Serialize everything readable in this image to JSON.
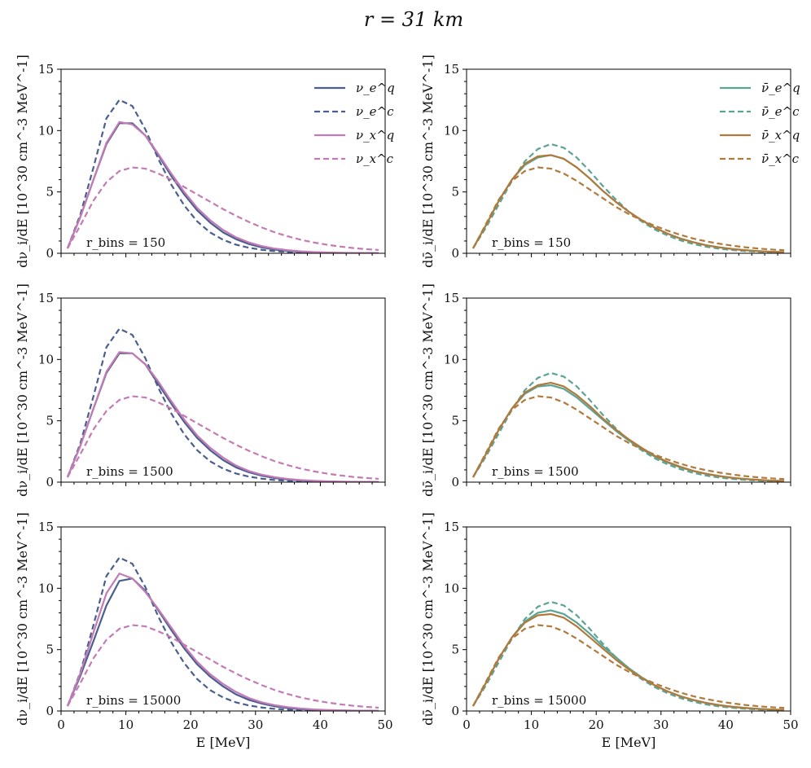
{
  "figure_title": "r = 31 km",
  "chart_data": [
    {
      "type": "line",
      "panel": "left-top",
      "annotation": "r_bins = 150",
      "xlabel": "",
      "ylabel": "dν_i/dE [10^30 cm^-3 MeV^-1]",
      "xlim": [
        0,
        50
      ],
      "ylim": [
        0,
        15
      ],
      "xticks": [
        0,
        10,
        20,
        30,
        40,
        50
      ],
      "xtick_labels_shown": false,
      "yticks": [
        0,
        5,
        10,
        15
      ],
      "grid": false,
      "legend": "top-right",
      "x": [
        1,
        3,
        5,
        7,
        9,
        11,
        13,
        15,
        17,
        19,
        21,
        23,
        25,
        27,
        29,
        31,
        33,
        35,
        37,
        39,
        41,
        43,
        45,
        47,
        49
      ],
      "series": [
        {
          "name": "ν_e^q",
          "color": "#4a5f8f",
          "dash": "solid",
          "values": [
            0.4,
            3.0,
            6.0,
            8.9,
            10.6,
            10.6,
            9.6,
            8.0,
            6.3,
            4.8,
            3.5,
            2.5,
            1.7,
            1.15,
            0.75,
            0.48,
            0.3,
            0.19,
            0.12,
            0.07,
            0.045,
            0.03,
            0.02,
            0.01,
            0.01
          ]
        },
        {
          "name": "ν_e^c",
          "color": "#4a5f8f",
          "dash": "dashed",
          "values": [
            0.4,
            3.2,
            7.0,
            11.0,
            12.5,
            12.0,
            10.1,
            7.7,
            5.6,
            3.9,
            2.6,
            1.7,
            1.1,
            0.7,
            0.45,
            0.28,
            0.17,
            0.1,
            0.06,
            0.04,
            0.02,
            0.01,
            0.01,
            0.0,
            0.0
          ]
        },
        {
          "name": "ν_x^q",
          "color": "#c47bb5",
          "dash": "solid",
          "values": [
            0.4,
            3.0,
            6.0,
            9.0,
            10.7,
            10.5,
            9.6,
            8.1,
            6.5,
            5.0,
            3.7,
            2.7,
            1.9,
            1.3,
            0.88,
            0.58,
            0.38,
            0.25,
            0.16,
            0.1,
            0.065,
            0.04,
            0.025,
            0.015,
            0.01
          ]
        },
        {
          "name": "ν_x^c",
          "color": "#c47bb5",
          "dash": "dashed",
          "values": [
            0.4,
            2.3,
            4.3,
            5.8,
            6.7,
            7.0,
            6.9,
            6.5,
            6.0,
            5.4,
            4.8,
            4.2,
            3.6,
            3.05,
            2.55,
            2.1,
            1.7,
            1.38,
            1.1,
            0.88,
            0.7,
            0.55,
            0.43,
            0.34,
            0.27
          ]
        }
      ]
    },
    {
      "type": "line",
      "panel": "right-top",
      "annotation": "r_bins = 150",
      "xlabel": "",
      "ylabel": "dν̄_i/dE [10^30 cm^-3 MeV^-1]",
      "xlim": [
        0,
        50
      ],
      "ylim": [
        0,
        15
      ],
      "xticks": [
        0,
        10,
        20,
        30,
        40,
        50
      ],
      "xtick_labels_shown": false,
      "yticks": [
        0,
        5,
        10,
        15
      ],
      "grid": false,
      "legend": "top-right",
      "x": [
        1,
        3,
        5,
        7,
        9,
        11,
        13,
        15,
        17,
        19,
        21,
        23,
        25,
        27,
        29,
        31,
        33,
        35,
        37,
        39,
        41,
        43,
        45,
        47,
        49
      ],
      "series": [
        {
          "name": "ν̄_e^q",
          "color": "#5ba393",
          "dash": "solid",
          "values": [
            0.4,
            2.3,
            4.3,
            6.0,
            7.2,
            7.8,
            8.0,
            7.7,
            7.0,
            6.1,
            5.1,
            4.2,
            3.4,
            2.7,
            2.1,
            1.6,
            1.2,
            0.9,
            0.65,
            0.48,
            0.35,
            0.25,
            0.18,
            0.13,
            0.09
          ]
        },
        {
          "name": "ν̄_e^c",
          "color": "#5ba393",
          "dash": "dashed",
          "values": [
            0.4,
            2.1,
            4.0,
            5.9,
            7.5,
            8.5,
            8.9,
            8.6,
            7.8,
            6.7,
            5.5,
            4.4,
            3.4,
            2.6,
            1.95,
            1.45,
            1.05,
            0.75,
            0.53,
            0.37,
            0.26,
            0.18,
            0.12,
            0.08,
            0.05
          ]
        },
        {
          "name": "ν̄_x^q",
          "color": "#b07a3d",
          "dash": "solid",
          "values": [
            0.4,
            2.3,
            4.3,
            6.0,
            7.3,
            7.9,
            8.0,
            7.7,
            7.0,
            6.1,
            5.1,
            4.2,
            3.4,
            2.7,
            2.1,
            1.6,
            1.2,
            0.9,
            0.65,
            0.48,
            0.35,
            0.25,
            0.18,
            0.13,
            0.09
          ]
        },
        {
          "name": "ν̄_x^c",
          "color": "#b07a3d",
          "dash": "dashed",
          "values": [
            0.4,
            2.4,
            4.4,
            5.9,
            6.7,
            7.0,
            6.9,
            6.5,
            5.9,
            5.2,
            4.5,
            3.8,
            3.2,
            2.7,
            2.25,
            1.85,
            1.5,
            1.2,
            0.97,
            0.78,
            0.62,
            0.49,
            0.39,
            0.31,
            0.25
          ]
        }
      ]
    },
    {
      "type": "line",
      "panel": "left-middle",
      "annotation": "r_bins = 1500",
      "xlabel": "",
      "ylabel": "dν_i/dE [10^30 cm^-3 MeV^-1]",
      "xlim": [
        0,
        50
      ],
      "ylim": [
        0,
        15
      ],
      "xticks": [
        0,
        10,
        20,
        30,
        40,
        50
      ],
      "xtick_labels_shown": false,
      "yticks": [
        0,
        5,
        10,
        15
      ],
      "grid": false,
      "legend": "none",
      "x": [
        1,
        3,
        5,
        7,
        9,
        11,
        13,
        15,
        17,
        19,
        21,
        23,
        25,
        27,
        29,
        31,
        33,
        35,
        37,
        39,
        41,
        43,
        45,
        47,
        49
      ],
      "series": [
        {
          "name": "ν_e^q",
          "color": "#4a5f8f",
          "dash": "solid",
          "values": [
            0.4,
            3.0,
            6.0,
            8.9,
            10.5,
            10.5,
            9.6,
            8.0,
            6.4,
            4.9,
            3.6,
            2.6,
            1.8,
            1.2,
            0.8,
            0.52,
            0.33,
            0.21,
            0.13,
            0.08,
            0.05,
            0.03,
            0.02,
            0.01,
            0.01
          ]
        },
        {
          "name": "ν_e^c",
          "color": "#4a5f8f",
          "dash": "dashed",
          "values": [
            0.4,
            3.2,
            7.0,
            11.0,
            12.5,
            12.0,
            10.1,
            7.7,
            5.6,
            3.9,
            2.6,
            1.7,
            1.1,
            0.7,
            0.45,
            0.28,
            0.17,
            0.1,
            0.06,
            0.04,
            0.02,
            0.01,
            0.01,
            0.0,
            0.0
          ]
        },
        {
          "name": "ν_x^q",
          "color": "#c47bb5",
          "dash": "solid",
          "values": [
            0.4,
            3.0,
            6.0,
            9.0,
            10.6,
            10.5,
            9.6,
            8.2,
            6.6,
            5.1,
            3.8,
            2.8,
            2.0,
            1.35,
            0.9,
            0.6,
            0.4,
            0.26,
            0.17,
            0.11,
            0.07,
            0.045,
            0.03,
            0.02,
            0.01
          ]
        },
        {
          "name": "ν_x^c",
          "color": "#c47bb5",
          "dash": "dashed",
          "values": [
            0.4,
            2.3,
            4.3,
            5.8,
            6.7,
            7.0,
            6.9,
            6.5,
            6.0,
            5.4,
            4.8,
            4.2,
            3.6,
            3.05,
            2.55,
            2.1,
            1.7,
            1.38,
            1.1,
            0.88,
            0.7,
            0.55,
            0.43,
            0.34,
            0.27
          ]
        }
      ]
    },
    {
      "type": "line",
      "panel": "right-middle",
      "annotation": "r_bins = 1500",
      "xlabel": "",
      "ylabel": "dν̄_i/dE [10^30 cm^-3 MeV^-1]",
      "xlim": [
        0,
        50
      ],
      "ylim": [
        0,
        15
      ],
      "xticks": [
        0,
        10,
        20,
        30,
        40,
        50
      ],
      "xtick_labels_shown": false,
      "yticks": [
        0,
        5,
        10,
        15
      ],
      "grid": false,
      "legend": "none",
      "x": [
        1,
        3,
        5,
        7,
        9,
        11,
        13,
        15,
        17,
        19,
        21,
        23,
        25,
        27,
        29,
        31,
        33,
        35,
        37,
        39,
        41,
        43,
        45,
        47,
        49
      ],
      "series": [
        {
          "name": "ν̄_e^q",
          "color": "#5ba393",
          "dash": "solid",
          "values": [
            0.4,
            2.3,
            4.3,
            6.0,
            7.2,
            7.8,
            7.9,
            7.6,
            6.9,
            6.0,
            5.1,
            4.2,
            3.4,
            2.7,
            2.1,
            1.6,
            1.2,
            0.9,
            0.66,
            0.48,
            0.35,
            0.25,
            0.18,
            0.13,
            0.09
          ]
        },
        {
          "name": "ν̄_e^c",
          "color": "#5ba393",
          "dash": "dashed",
          "values": [
            0.4,
            2.1,
            4.0,
            5.9,
            7.5,
            8.5,
            8.9,
            8.6,
            7.8,
            6.7,
            5.5,
            4.4,
            3.4,
            2.6,
            1.95,
            1.45,
            1.05,
            0.75,
            0.53,
            0.37,
            0.26,
            0.18,
            0.12,
            0.08,
            0.05
          ]
        },
        {
          "name": "ν̄_x^q",
          "color": "#b07a3d",
          "dash": "solid",
          "values": [
            0.4,
            2.3,
            4.3,
            6.0,
            7.3,
            7.9,
            8.1,
            7.8,
            7.1,
            6.2,
            5.2,
            4.3,
            3.5,
            2.8,
            2.15,
            1.65,
            1.25,
            0.92,
            0.68,
            0.5,
            0.36,
            0.26,
            0.19,
            0.13,
            0.09
          ]
        },
        {
          "name": "ν̄_x^c",
          "color": "#b07a3d",
          "dash": "dashed",
          "values": [
            0.4,
            2.4,
            4.4,
            5.9,
            6.7,
            7.0,
            6.9,
            6.5,
            5.9,
            5.2,
            4.5,
            3.8,
            3.2,
            2.7,
            2.25,
            1.85,
            1.5,
            1.2,
            0.97,
            0.78,
            0.62,
            0.49,
            0.39,
            0.31,
            0.25
          ]
        }
      ]
    },
    {
      "type": "line",
      "panel": "left-bottom",
      "annotation": "r_bins = 15000",
      "xlabel": "E [MeV]",
      "ylabel": "dν_i/dE [10^30 cm^-3 MeV^-1]",
      "xlim": [
        0,
        50
      ],
      "ylim": [
        0,
        15
      ],
      "xticks": [
        0,
        10,
        20,
        30,
        40,
        50
      ],
      "xtick_labels_shown": true,
      "yticks": [
        0,
        5,
        10,
        15
      ],
      "grid": false,
      "legend": "none",
      "x": [
        1,
        3,
        5,
        7,
        9,
        11,
        13,
        15,
        17,
        19,
        21,
        23,
        25,
        27,
        29,
        31,
        33,
        35,
        37,
        39,
        41,
        43,
        45,
        47,
        49
      ],
      "series": [
        {
          "name": "ν_e^q",
          "color": "#4a5f8f",
          "dash": "solid",
          "values": [
            0.4,
            2.9,
            5.7,
            8.6,
            10.6,
            10.8,
            9.8,
            8.2,
            6.6,
            5.1,
            3.8,
            2.8,
            2.0,
            1.35,
            0.9,
            0.6,
            0.38,
            0.24,
            0.15,
            0.1,
            0.06,
            0.04,
            0.025,
            0.015,
            0.01
          ]
        },
        {
          "name": "ν_e^c",
          "color": "#4a5f8f",
          "dash": "dashed",
          "values": [
            0.4,
            3.2,
            7.0,
            11.0,
            12.5,
            12.0,
            10.1,
            7.7,
            5.6,
            3.9,
            2.6,
            1.7,
            1.1,
            0.7,
            0.45,
            0.28,
            0.17,
            0.1,
            0.06,
            0.04,
            0.02,
            0.01,
            0.01,
            0.0,
            0.0
          ]
        },
        {
          "name": "ν_x^q",
          "color": "#c47bb5",
          "dash": "solid",
          "values": [
            0.4,
            3.1,
            6.4,
            9.6,
            11.2,
            10.8,
            9.7,
            8.3,
            6.8,
            5.3,
            4.0,
            3.0,
            2.2,
            1.55,
            1.05,
            0.7,
            0.47,
            0.31,
            0.2,
            0.13,
            0.085,
            0.055,
            0.035,
            0.02,
            0.015
          ]
        },
        {
          "name": "ν_x^c",
          "color": "#c47bb5",
          "dash": "dashed",
          "values": [
            0.4,
            2.3,
            4.3,
            5.8,
            6.7,
            7.0,
            6.9,
            6.5,
            6.0,
            5.4,
            4.8,
            4.2,
            3.6,
            3.05,
            2.55,
            2.1,
            1.7,
            1.38,
            1.1,
            0.88,
            0.7,
            0.55,
            0.43,
            0.34,
            0.27
          ]
        }
      ]
    },
    {
      "type": "line",
      "panel": "right-bottom",
      "annotation": "r_bins = 15000",
      "xlabel": "E [MeV]",
      "ylabel": "dν̄_i/dE [10^30 cm^-3 MeV^-1]",
      "xlim": [
        0,
        50
      ],
      "ylim": [
        0,
        15
      ],
      "xticks": [
        0,
        10,
        20,
        30,
        40,
        50
      ],
      "xtick_labels_shown": true,
      "yticks": [
        0,
        5,
        10,
        15
      ],
      "grid": false,
      "legend": "none",
      "x": [
        1,
        3,
        5,
        7,
        9,
        11,
        13,
        15,
        17,
        19,
        21,
        23,
        25,
        27,
        29,
        31,
        33,
        35,
        37,
        39,
        41,
        43,
        45,
        47,
        49
      ],
      "series": [
        {
          "name": "ν̄_e^q",
          "color": "#5ba393",
          "dash": "solid",
          "values": [
            0.4,
            2.3,
            4.3,
            6.0,
            7.3,
            8.0,
            8.2,
            7.9,
            7.2,
            6.3,
            5.3,
            4.4,
            3.5,
            2.75,
            2.1,
            1.6,
            1.2,
            0.88,
            0.64,
            0.46,
            0.33,
            0.24,
            0.17,
            0.12,
            0.08
          ]
        },
        {
          "name": "ν̄_e^c",
          "color": "#5ba393",
          "dash": "dashed",
          "values": [
            0.4,
            2.1,
            4.0,
            5.9,
            7.5,
            8.5,
            8.9,
            8.6,
            7.8,
            6.7,
            5.5,
            4.4,
            3.4,
            2.6,
            1.95,
            1.45,
            1.05,
            0.75,
            0.53,
            0.37,
            0.26,
            0.18,
            0.12,
            0.08,
            0.05
          ]
        },
        {
          "name": "ν̄_x^q",
          "color": "#b07a3d",
          "dash": "solid",
          "values": [
            0.4,
            2.3,
            4.3,
            6.0,
            7.2,
            7.8,
            7.9,
            7.6,
            6.9,
            6.0,
            5.1,
            4.2,
            3.4,
            2.7,
            2.1,
            1.6,
            1.2,
            0.9,
            0.66,
            0.48,
            0.35,
            0.25,
            0.18,
            0.13,
            0.09
          ]
        },
        {
          "name": "ν̄_x^c",
          "color": "#b07a3d",
          "dash": "dashed",
          "values": [
            0.4,
            2.4,
            4.4,
            5.9,
            6.7,
            7.0,
            6.9,
            6.5,
            5.9,
            5.2,
            4.5,
            3.8,
            3.2,
            2.7,
            2.25,
            1.85,
            1.5,
            1.2,
            0.97,
            0.78,
            0.62,
            0.49,
            0.39,
            0.31,
            0.25
          ]
        }
      ]
    }
  ]
}
